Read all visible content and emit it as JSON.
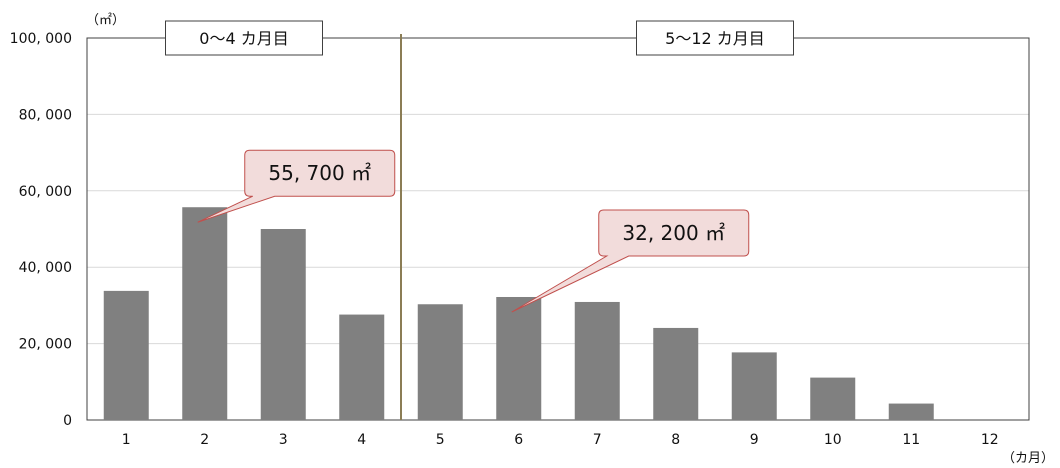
{
  "chart_data": {
    "type": "bar",
    "categories": [
      "1",
      "2",
      "3",
      "4",
      "5",
      "6",
      "7",
      "8",
      "9",
      "10",
      "11",
      "12"
    ],
    "values": [
      33800,
      55700,
      50000,
      27600,
      30300,
      32200,
      30900,
      24100,
      17700,
      11100,
      4300,
      0
    ],
    "ylim": [
      0,
      100000
    ],
    "yticks": [
      0,
      20000,
      40000,
      60000,
      80000,
      100000
    ],
    "ytick_labels": [
      "0",
      "20, 000",
      "40, 000",
      "60, 000",
      "80, 000",
      "100, 000"
    ],
    "y_unit_label": "（㎡）",
    "x_unit_label": "（カ月）",
    "grid": "horizontal",
    "bar_color": "#808080",
    "divider": {
      "after_category": "4",
      "color": "#8b7d55"
    },
    "periods": [
      {
        "label": "0〜4 カ月目",
        "from": "1",
        "to": "4"
      },
      {
        "label": "5〜12 カ月目",
        "from": "5",
        "to": "12"
      }
    ],
    "annotations": [
      {
        "category": "2",
        "text": "55, 700 ㎡",
        "value": 55700
      },
      {
        "category": "6",
        "text": "32, 200 ㎡",
        "value": 32200
      }
    ],
    "callout_fill": "#f2dcdb",
    "callout_stroke": "#c0504d"
  }
}
